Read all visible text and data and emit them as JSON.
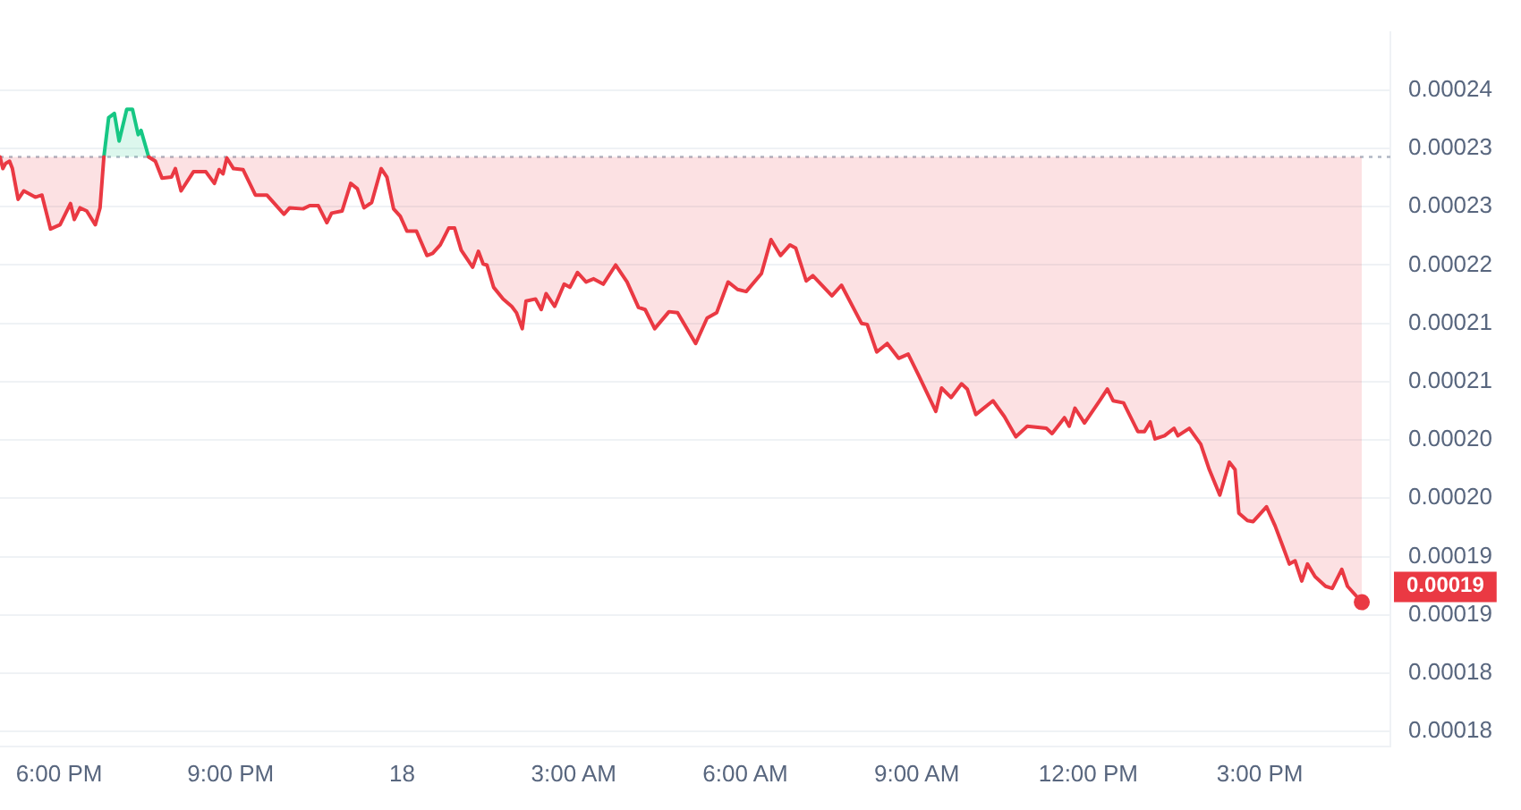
{
  "chart_data": {
    "type": "line",
    "x": [
      "--01-17T16:58",
      "--01-17T17:01",
      "--01-17T17:04",
      "--01-17T17:08",
      "--01-17T17:11",
      "--01-17T17:17",
      "--01-17T17:23",
      "--01-17T17:35",
      "--01-17T17:42",
      "--01-17T17:51",
      "--01-17T18:01",
      "--01-17T18:12",
      "--01-17T18:16",
      "--01-17T18:22",
      "--01-17T18:29",
      "--01-17T18:38",
      "--01-17T18:43",
      "--01-17T18:47",
      "--01-17T18:52",
      "--01-17T18:58",
      "--01-17T19:03",
      "--01-17T19:11",
      "--01-17T19:17",
      "--01-17T19:23",
      "--01-17T19:26",
      "--01-17T19:34",
      "--01-17T19:41",
      "--01-17T19:48",
      "--01-17T19:58",
      "--01-17T20:02",
      "--01-17T20:08",
      "--01-17T20:21",
      "--01-17T20:34",
      "--01-17T20:43",
      "--01-17T20:48",
      "--01-17T20:52",
      "--01-17T20:56",
      "--01-17T21:03",
      "--01-17T21:13",
      "--01-17T21:26",
      "--01-17T21:38",
      "--01-17T21:56",
      "--01-17T22:02",
      "--01-17T22:16",
      "--01-17T22:23",
      "--01-17T22:32",
      "--01-17T22:41",
      "--01-17T22:46",
      "--01-17T22:57",
      "--01-17T23:06",
      "--01-17T23:13",
      "--01-17T23:20",
      "--01-17T23:28",
      "--01-17T23:38",
      "--01-17T23:44",
      "--01-17T23:51",
      "--01-17T23:58",
      "--01-18T00:05",
      "--01-18T00:15",
      "--01-18T00:26",
      "--01-18T00:32",
      "--01-18T00:40",
      "--01-18T00:49",
      "--01-18T00:55",
      "--01-18T01:02",
      "--01-18T01:14",
      "--01-18T01:20",
      "--01-18T01:25",
      "--01-18T01:29",
      "--01-18T01:36",
      "--01-18T01:46",
      "--01-18T01:55",
      "--01-18T02:00",
      "--01-18T02:06",
      "--01-18T02:10",
      "--01-18T02:20",
      "--01-18T02:26",
      "--01-18T02:31",
      "--01-18T02:40",
      "--01-18T02:50",
      "--01-18T02:56",
      "--01-18T03:04",
      "--01-18T03:13",
      "--01-18T03:21",
      "--01-18T03:31",
      "--01-18T03:44",
      "--01-18T03:56",
      "--01-18T04:08",
      "--01-18T04:15",
      "--01-18T04:25",
      "--01-18T04:40",
      "--01-18T04:49",
      "--01-18T05:08",
      "--01-18T05:20",
      "--01-18T05:30",
      "--01-18T05:42",
      "--01-18T05:52",
      "--01-18T06:01",
      "--01-18T06:17",
      "--01-18T06:27",
      "--01-18T06:37",
      "--01-18T06:47",
      "--01-18T06:53",
      "--01-18T07:04",
      "--01-18T07:11",
      "--01-18T07:31",
      "--01-18T07:41",
      "--01-18T08:02",
      "--01-18T08:08",
      "--01-18T08:18",
      "--01-18T08:29",
      "--01-18T08:41",
      "--01-18T08:51",
      "--01-18T09:02",
      "--01-18T09:20",
      "--01-18T09:26",
      "--01-18T09:36",
      "--01-18T09:47",
      "--01-18T09:53",
      "--01-18T10:02",
      "--01-18T10:20",
      "--01-18T10:32",
      "--01-18T10:44",
      "--01-18T10:56",
      "--01-18T11:16",
      "--01-18T11:22",
      "--01-18T11:35",
      "--01-18T11:40",
      "--01-18T11:46",
      "--01-18T11:56",
      "--01-18T12:12",
      "--01-18T12:20",
      "--01-18T12:26",
      "--01-18T12:37",
      "--01-18T12:52",
      "--01-18T12:59",
      "--01-18T13:05",
      "--01-18T13:10",
      "--01-18T13:20",
      "--01-18T13:30",
      "--01-18T13:34",
      "--01-18T13:46",
      "--01-18T13:58",
      "--01-18T14:07",
      "--01-18T14:18",
      "--01-18T14:28",
      "--01-18T14:34",
      "--01-18T14:38",
      "--01-18T14:47",
      "--01-18T14:53",
      "--01-18T15:07",
      "--01-18T15:16",
      "--01-18T15:24",
      "--01-18T15:31",
      "--01-18T15:37",
      "--01-18T15:44",
      "--01-18T15:50",
      "--01-18T15:58",
      "--01-18T16:09",
      "--01-18T16:16",
      "--01-18T16:26",
      "--01-18T16:32",
      "--01-18T16:40",
      "--01-18T16:47"
    ],
    "series": [
      {
        "color": "#ea3943",
        "values": [
          0.0002302,
          0.0002291,
          0.0002296,
          0.0002298,
          0.0002291,
          0.0002262,
          0.000227,
          0.0002264,
          0.0002266,
          0.0002234,
          0.0002238,
          0.0002258,
          0.0002243,
          0.0002254,
          0.0002251,
          0.0002238,
          0.0002254,
          0.0002302,
          null,
          null,
          null,
          null,
          null,
          null,
          null,
          0.0002302,
          0.0002298,
          0.0002282,
          0.0002283,
          0.0002291,
          0.000227,
          0.0002288,
          0.0002288,
          0.0002277,
          0.000229,
          0.0002286,
          0.0002301,
          0.0002291,
          0.000229,
          0.0002266,
          0.0002266,
          0.0002248,
          0.0002254,
          0.0002253,
          0.0002256,
          0.0002256,
          0.000224,
          0.0002249,
          0.0002251,
          0.0002277,
          0.0002272,
          0.0002254,
          0.0002259,
          0.0002291,
          0.0002283,
          0.0002253,
          0.0002246,
          0.0002232,
          0.0002232,
          0.0002209,
          0.0002211,
          0.0002219,
          0.0002235,
          0.0002235,
          0.0002214,
          0.0002198,
          0.0002213,
          0.0002201,
          0.00022,
          0.0002179,
          0.0002168,
          0.0002161,
          0.0002155,
          0.000214,
          0.0002166,
          0.0002168,
          0.0002158,
          0.0002173,
          0.0002161,
          0.0002182,
          0.0002179,
          0.0002193,
          0.0002184,
          0.0002187,
          0.0002182,
          0.00022,
          0.0002184,
          0.000216,
          0.0002158,
          0.000214,
          0.0002156,
          0.0002155,
          0.0002126,
          0.000215,
          0.0002155,
          0.0002184,
          0.0002177,
          0.0002175,
          0.0002192,
          0.0002224,
          0.0002209,
          0.0002219,
          0.0002216,
          0.0002185,
          0.000219,
          0.0002171,
          0.0002181,
          0.0002145,
          0.0002144,
          0.0002118,
          0.0002126,
          0.0002112,
          0.0002116,
          0.0002096,
          0.0002062,
          0.0002084,
          0.0002075,
          0.0002088,
          0.0002083,
          0.0002059,
          0.0002072,
          0.0002057,
          0.0002038,
          0.0002048,
          0.0002046,
          0.0002041,
          0.0002056,
          0.0002048,
          0.0002065,
          0.0002051,
          0.0002072,
          0.0002083,
          0.0002072,
          0.000207,
          0.0002043,
          0.0002043,
          0.0002052,
          0.0002036,
          0.0002039,
          0.0002046,
          0.0002039,
          0.0002046,
          0.0002031,
          0.0002007,
          0.0001983,
          0.0002014,
          0.0002007,
          0.0001966,
          0.0001959,
          0.0001958,
          0.0001972,
          0.0001954,
          0.0001935,
          0.0001918,
          0.0001921,
          0.0001902,
          0.0001918,
          0.0001906,
          0.0001897,
          0.0001895,
          0.0001913,
          0.0001897,
          0.0001889,
          0.0001882
        ]
      },
      {
        "color": "#16c784",
        "x": [
          "--01-17T18:47",
          "--01-17T18:52",
          "--01-17T18:58",
          "--01-17T19:03",
          "--01-17T19:11",
          "--01-17T19:17",
          "--01-17T19:23",
          "--01-17T19:26",
          "--01-17T19:34"
        ],
        "values": [
          0.0002302,
          0.0002339,
          0.0002343,
          0.0002317,
          0.0002347,
          0.0002347,
          0.0002323,
          0.0002327,
          0.0002302
        ]
      }
    ],
    "xlim": [
      "--01-17T16:58",
      "--01-18T17:17"
    ],
    "xticks": [
      {
        "value": "--01-17T18:00",
        "label": "6:00 PM"
      },
      {
        "value": "--01-17T21:00",
        "label": "9:00 PM"
      },
      {
        "value": "--01-18T00:00",
        "label": "18"
      },
      {
        "value": "--01-18T03:00",
        "label": "3:00 AM"
      },
      {
        "value": "--01-18T06:00",
        "label": "6:00 AM"
      },
      {
        "value": "--01-18T09:00",
        "label": "9:00 AM"
      },
      {
        "value": "--01-18T12:00",
        "label": "12:00 PM"
      },
      {
        "value": "--01-18T15:00",
        "label": "3:00 PM"
      }
    ],
    "ylim": [
      0.0001746,
      0.000242
    ],
    "yticks": [
      {
        "value": 0.0002365,
        "label": "0.00024"
      },
      {
        "value": 0.000231,
        "label": "0.00023"
      },
      {
        "value": 0.0002255,
        "label": "0.00023"
      },
      {
        "value": 0.00022,
        "label": "0.00022"
      },
      {
        "value": 0.0002145,
        "label": "0.00021"
      },
      {
        "value": 0.000209,
        "label": "0.00021"
      },
      {
        "value": 0.0002035,
        "label": "0.00020"
      },
      {
        "value": 0.000198,
        "label": "0.00020"
      },
      {
        "value": 0.0001925,
        "label": "0.00019"
      },
      {
        "value": 0.000187,
        "label": "0.00019"
      },
      {
        "value": 0.0001815,
        "label": "0.00018"
      },
      {
        "value": 0.000176,
        "label": "0.00018"
      }
    ],
    "ref_lines": [
      {
        "axis": "y",
        "value": 0.0002302,
        "color": "#b0b7c3",
        "line_style": "dotted"
      }
    ],
    "annotations": [
      {
        "text": "0.00019",
        "x": "--01-18T16:47",
        "y": 0.0001882
      }
    ],
    "grid": "y",
    "legend": false
  }
}
